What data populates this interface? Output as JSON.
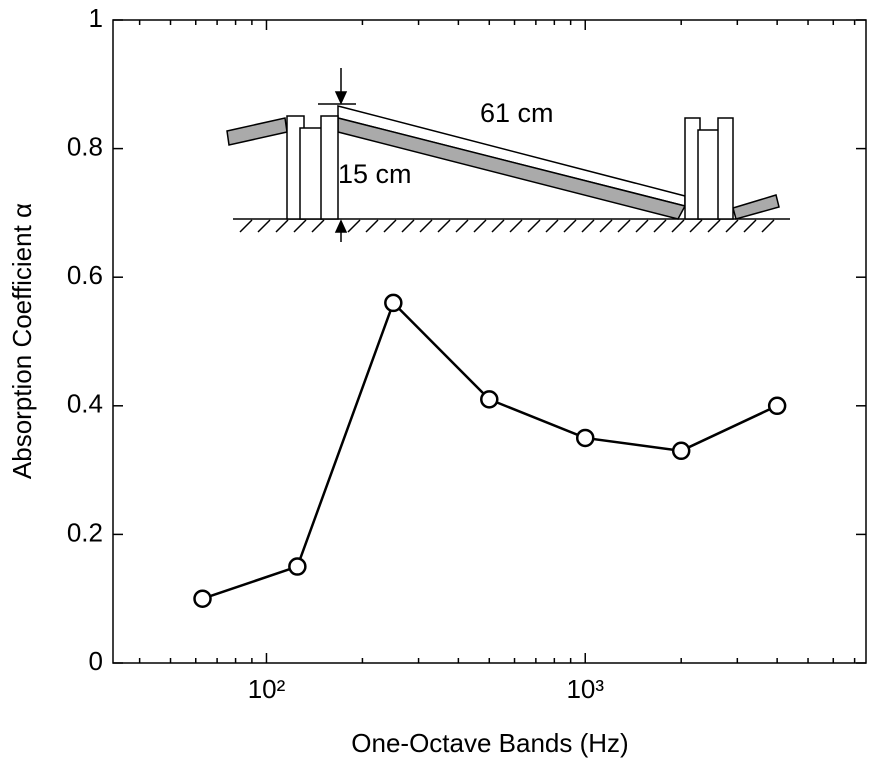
{
  "chart_data": {
    "type": "line",
    "x_label": "One-Octave Bands (Hz)",
    "y_label": "Absorption Coefficient α",
    "annotations": [
      "61 cm",
      "15 cm"
    ],
    "x": [
      63,
      125,
      250,
      500,
      1000,
      2000,
      4000
    ],
    "series": [
      {
        "color": "#000000",
        "marker": "circle",
        "values": [
          0.1,
          0.15,
          0.56,
          0.41,
          0.35,
          0.33,
          0.4
        ]
      }
    ],
    "xscale": "log",
    "xlim": [
      33,
      7600
    ],
    "xticks": [
      {
        "value": 100,
        "label": "10²"
      },
      {
        "value": 1000,
        "label": "10³"
      }
    ],
    "xminorticks": [
      40,
      50,
      60,
      70,
      80,
      90,
      200,
      300,
      400,
      500,
      600,
      700,
      800,
      900,
      2000,
      3000,
      4000,
      5000,
      6000,
      7000
    ],
    "ylim": [
      0,
      1
    ],
    "yticks": [
      0,
      0.2,
      0.4,
      0.6,
      0.8,
      1
    ],
    "grid": false
  }
}
